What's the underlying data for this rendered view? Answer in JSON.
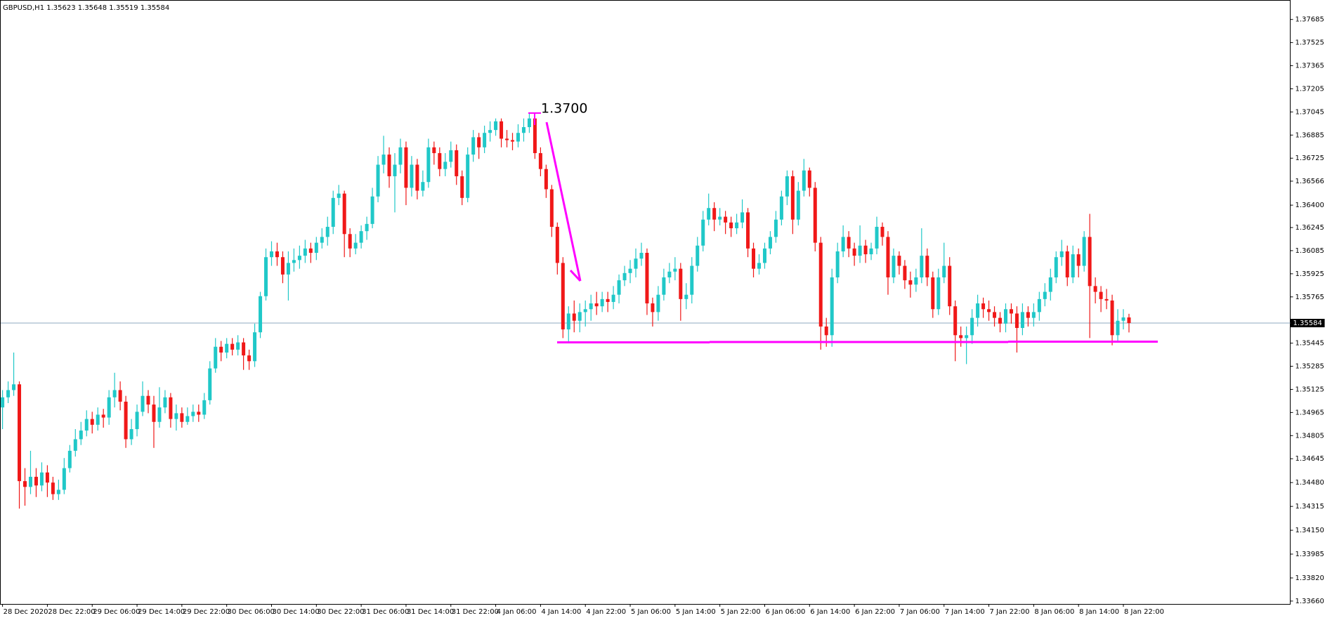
{
  "chart_data": {
    "type": "candlestick",
    "title": "GBPUSD,H1 1.35623 1.35648 1.35519 1.35584",
    "annotation": "1.3700",
    "last_price": 1.35584,
    "up_color": "#20c8c8",
    "down_color": "#f01818",
    "last_color": "#8fa9c2",
    "ylim": [
      1.3364,
      1.3781
    ],
    "yticks": [
      1.37685,
      1.37525,
      1.37365,
      1.37205,
      1.37045,
      1.36885,
      1.36725,
      1.36566,
      {
        "value": 1.364,
        "label": "1.36400"
      },
      1.36245,
      1.36085,
      1.35925,
      1.35765,
      1.35445,
      1.35285,
      1.35125,
      1.34965,
      1.34805,
      1.34645,
      {
        "value": 1.3448,
        "label": "1.34480"
      },
      1.34315,
      {
        "value": 1.3415,
        "label": "1.34150"
      },
      1.33985,
      {
        "value": 1.3382,
        "label": "1.33820"
      },
      {
        "value": 1.3366,
        "label": "1.33660"
      }
    ],
    "categories": [
      "28 Dec 2020",
      null,
      null,
      null,
      null,
      null,
      null,
      null,
      "28 Dec 22:00",
      null,
      null,
      null,
      null,
      null,
      null,
      null,
      "29 Dec 06:00",
      null,
      null,
      null,
      null,
      null,
      null,
      null,
      "29 Dec 14:00",
      null,
      null,
      null,
      null,
      null,
      null,
      null,
      "29 Dec 22:00",
      null,
      null,
      null,
      null,
      null,
      null,
      null,
      "30 Dec 06:00",
      null,
      null,
      null,
      null,
      null,
      null,
      null,
      "30 Dec 14:00",
      null,
      null,
      null,
      null,
      null,
      null,
      null,
      "30 Dec 22:00",
      null,
      null,
      null,
      null,
      null,
      null,
      null,
      "31 Dec 06:00",
      null,
      null,
      null,
      null,
      null,
      null,
      null,
      "31 Dec 14:00",
      null,
      null,
      null,
      null,
      null,
      null,
      null,
      "31 Dec 22:00",
      null,
      null,
      null,
      null,
      null,
      null,
      null,
      "4 Jan 06:00",
      null,
      null,
      null,
      null,
      null,
      null,
      null,
      "4 Jan 14:00",
      null,
      null,
      null,
      null,
      null,
      null,
      null,
      "4 Jan 22:00",
      null,
      null,
      null,
      null,
      null,
      null,
      null,
      "5 Jan 06:00",
      null,
      null,
      null,
      null,
      null,
      null,
      null,
      "5 Jan 14:00",
      null,
      null,
      null,
      null,
      null,
      null,
      null,
      "5 Jan 22:00",
      null,
      null,
      null,
      null,
      null,
      null,
      null,
      "6 Jan 06:00",
      null,
      null,
      null,
      null,
      null,
      null,
      null,
      "6 Jan 14:00",
      null,
      null,
      null,
      null,
      null,
      null,
      null,
      "6 Jan 22:00",
      null,
      null,
      null,
      null,
      null,
      null,
      null,
      "7 Jan 06:00",
      null,
      null,
      null,
      null,
      null,
      null,
      null,
      "7 Jan 14:00",
      null,
      null,
      null,
      null,
      null,
      null,
      null,
      "7 Jan 22:00",
      null,
      null,
      null,
      null,
      null,
      null,
      null,
      "8 Jan 06:00",
      null,
      null,
      null,
      null,
      null,
      null,
      null,
      "8 Jan 14:00",
      null,
      null,
      null,
      null,
      null,
      null,
      null,
      "8 Jan 22:00",
      null
    ],
    "open": [
      1.35,
      1.3507,
      1.3512,
      1.3516,
      1.3449,
      1.3445,
      1.3452,
      1.3446,
      1.3455,
      1.3448,
      1.344,
      1.3443,
      1.3458,
      1.347,
      1.3478,
      1.3484,
      1.3492,
      1.3488,
      1.3495,
      1.3493,
      1.3507,
      1.3512,
      1.3504,
      1.3478,
      1.3485,
      1.3497,
      1.3508,
      1.3502,
      1.349,
      1.35,
      1.3507,
      1.3492,
      1.3496,
      1.349,
      1.3494,
      1.3497,
      1.3495,
      1.3505,
      1.3527,
      1.3542,
      1.3538,
      1.3544,
      1.354,
      1.3545,
      1.3536,
      1.3532,
      1.3552,
      1.3577,
      1.3604,
      1.3608,
      1.3604,
      1.3592,
      1.36,
      1.3602,
      1.3605,
      1.361,
      1.3607,
      1.3614,
      1.3618,
      1.3625,
      1.3645,
      1.3648,
      1.362,
      1.361,
      1.3614,
      1.3622,
      1.3627,
      1.3646,
      1.3668,
      1.3675,
      1.366,
      1.3668,
      1.368,
      1.3652,
      1.3668,
      1.365,
      1.3656,
      1.368,
      1.3676,
      1.3665,
      1.367,
      1.3678,
      1.366,
      1.3645,
      1.3675,
      1.3687,
      1.368,
      1.369,
      1.3692,
      1.3698,
      1.3686,
      1.3685,
      1.3684,
      1.369,
      1.3694,
      1.37,
      1.3676,
      1.3665,
      1.3651,
      1.3625,
      1.36,
      1.3554,
      1.3565,
      1.356,
      1.3566,
      1.3568,
      1.3572,
      1.357,
      1.3575,
      1.3573,
      1.3578,
      1.3588,
      1.3593,
      1.3596,
      1.3603,
      1.3607,
      1.3572,
      1.3566,
      1.3578,
      1.359,
      1.3594,
      1.3596,
      1.3575,
      1.3578,
      1.3598,
      1.3612,
      1.363,
      1.3638,
      1.363,
      1.3632,
      1.3628,
      1.3624,
      1.3628,
      1.3635,
      1.361,
      1.3596,
      1.36,
      1.361,
      1.3618,
      1.363,
      1.3646,
      1.366,
      1.363,
      1.365,
      1.3664,
      1.3652,
      1.3614,
      1.3556,
      1.355,
      1.359,
      1.3608,
      1.3618,
      1.361,
      1.3605,
      1.3612,
      1.3606,
      1.361,
      1.3625,
      1.3618,
      1.359,
      1.3605,
      1.3598,
      1.3588,
      1.3585,
      1.359,
      1.3605,
      1.359,
      1.3568,
      1.359,
      1.3598,
      1.357,
      1.355,
      1.3548,
      1.355,
      1.3562,
      1.3572,
      1.3568,
      1.3566,
      1.3562,
      1.3558,
      1.3568,
      1.3565,
      1.3555,
      1.3566,
      1.3562,
      1.3566,
      1.3575,
      1.358,
      1.359,
      1.3604,
      1.3608,
      1.359,
      1.3606,
      1.3598,
      1.3618,
      1.3584,
      1.358,
      1.3575,
      1.3574,
      1.355,
      1.356,
      1.35623
    ],
    "high": [
      1.3512,
      1.3518,
      1.3538,
      1.3518,
      1.3458,
      1.347,
      1.3458,
      1.3462,
      1.346,
      1.3452,
      1.345,
      1.3465,
      1.3474,
      1.3485,
      1.349,
      1.3498,
      1.3497,
      1.35,
      1.3499,
      1.3512,
      1.3524,
      1.3518,
      1.3508,
      1.3492,
      1.3502,
      1.3518,
      1.3512,
      1.3508,
      1.3514,
      1.3512,
      1.351,
      1.3502,
      1.35,
      1.35,
      1.3502,
      1.3502,
      1.351,
      1.3532,
      1.3548,
      1.3546,
      1.3548,
      1.3548,
      1.355,
      1.3548,
      1.354,
      1.3558,
      1.358,
      1.361,
      1.3615,
      1.3614,
      1.3608,
      1.3608,
      1.361,
      1.3612,
      1.3616,
      1.3614,
      1.3618,
      1.3624,
      1.3632,
      1.365,
      1.3654,
      1.365,
      1.3624,
      1.362,
      1.3626,
      1.3632,
      1.3652,
      1.3674,
      1.3688,
      1.368,
      1.3676,
      1.3686,
      1.3684,
      1.3674,
      1.3672,
      1.3664,
      1.3686,
      1.3684,
      1.368,
      1.3676,
      1.3684,
      1.3682,
      1.3664,
      1.368,
      1.3692,
      1.369,
      1.3695,
      1.3698,
      1.37,
      1.37,
      1.3692,
      1.369,
      1.3696,
      1.37,
      1.3704,
      1.3704,
      1.368,
      1.3668,
      1.3654,
      1.3628,
      1.3604,
      1.357,
      1.3574,
      1.3572,
      1.3574,
      1.3578,
      1.358,
      1.358,
      1.358,
      1.3584,
      1.3592,
      1.3598,
      1.3602,
      1.361,
      1.3614,
      1.361,
      1.3576,
      1.3584,
      1.3596,
      1.36,
      1.3604,
      1.36,
      1.3586,
      1.3604,
      1.3618,
      1.3636,
      1.3648,
      1.3642,
      1.3638,
      1.3636,
      1.3632,
      1.3634,
      1.3644,
      1.3638,
      1.3614,
      1.3606,
      1.3614,
      1.3622,
      1.3636,
      1.365,
      1.3664,
      1.3664,
      1.3656,
      1.3672,
      1.3666,
      1.3656,
      1.3618,
      1.3562,
      1.3596,
      1.3614,
      1.3626,
      1.3622,
      1.3614,
      1.3626,
      1.3616,
      1.3614,
      1.3632,
      1.3628,
      1.3622,
      1.361,
      1.3608,
      1.3602,
      1.3594,
      1.3596,
      1.3624,
      1.361,
      1.3594,
      1.3596,
      1.3614,
      1.3604,
      1.3574,
      1.3556,
      1.3556,
      1.3568,
      1.3578,
      1.3576,
      1.3574,
      1.357,
      1.3566,
      1.3572,
      1.3572,
      1.357,
      1.3572,
      1.357,
      1.3572,
      1.358,
      1.3586,
      1.3596,
      1.3608,
      1.3616,
      1.3612,
      1.3612,
      1.361,
      1.3622,
      1.3634,
      1.359,
      1.3584,
      1.3582,
      1.3578,
      1.3568,
      1.3568,
      1.35648
    ],
    "low": [
      1.3485,
      1.3503,
      1.3508,
      1.343,
      1.3432,
      1.344,
      1.3438,
      1.3442,
      1.3438,
      1.3436,
      1.3436,
      1.344,
      1.3455,
      1.3466,
      1.3474,
      1.348,
      1.3482,
      1.3484,
      1.3486,
      1.3488,
      1.35,
      1.3498,
      1.3472,
      1.3474,
      1.348,
      1.3494,
      1.3496,
      1.3472,
      1.3486,
      1.3496,
      1.3486,
      1.3484,
      1.3486,
      1.3488,
      1.349,
      1.349,
      1.3492,
      1.3502,
      1.3524,
      1.3532,
      1.3534,
      1.3536,
      1.3536,
      1.3526,
      1.3526,
      1.3528,
      1.3548,
      1.3574,
      1.3598,
      1.3598,
      1.3586,
      1.3574,
      1.3594,
      1.3596,
      1.36,
      1.36,
      1.3602,
      1.361,
      1.3612,
      1.362,
      1.364,
      1.3604,
      1.3604,
      1.3606,
      1.361,
      1.3616,
      1.3624,
      1.3642,
      1.3662,
      1.3652,
      1.3635,
      1.3662,
      1.364,
      1.3646,
      1.3644,
      1.3646,
      1.3652,
      1.3668,
      1.366,
      1.366,
      1.3666,
      1.3654,
      1.364,
      1.3642,
      1.367,
      1.3672,
      1.3676,
      1.3684,
      1.3688,
      1.368,
      1.368,
      1.3678,
      1.368,
      1.3684,
      1.369,
      1.3672,
      1.366,
      1.3645,
      1.3618,
      1.3592,
      1.3548,
      1.3545,
      1.3552,
      1.3552,
      1.3556,
      1.356,
      1.3564,
      1.3566,
      1.3566,
      1.3568,
      1.3572,
      1.3584,
      1.3586,
      1.359,
      1.3598,
      1.3564,
      1.3556,
      1.356,
      1.3574,
      1.3586,
      1.3588,
      1.356,
      1.3568,
      1.3572,
      1.3594,
      1.3608,
      1.3626,
      1.3622,
      1.3626,
      1.362,
      1.3618,
      1.362,
      1.3624,
      1.3604,
      1.359,
      1.3592,
      1.3596,
      1.3606,
      1.3614,
      1.3626,
      1.364,
      1.362,
      1.3626,
      1.3646,
      1.3646,
      1.3608,
      1.354,
      1.3542,
      1.3542,
      1.3586,
      1.3604,
      1.3604,
      1.3598,
      1.36,
      1.36,
      1.3602,
      1.3606,
      1.3612,
      1.3578,
      1.3586,
      1.3592,
      1.3582,
      1.3576,
      1.358,
      1.3586,
      1.3584,
      1.3562,
      1.3564,
      1.3586,
      1.3564,
      1.3532,
      1.3542,
      1.353,
      1.3544,
      1.3556,
      1.3562,
      1.356,
      1.3556,
      1.3552,
      1.3552,
      1.3558,
      1.3538,
      1.355,
      1.3556,
      1.3556,
      1.356,
      1.357,
      1.3574,
      1.3586,
      1.3598,
      1.3584,
      1.3586,
      1.359,
      1.3594,
      1.3548,
      1.3572,
      1.3566,
      1.3568,
      1.3543,
      1.3546,
      1.3554,
      1.35519
    ],
    "close": [
      1.3507,
      1.3512,
      1.3516,
      1.3449,
      1.3445,
      1.3452,
      1.3446,
      1.3455,
      1.3448,
      1.344,
      1.3443,
      1.3458,
      1.347,
      1.3478,
      1.3484,
      1.3492,
      1.3488,
      1.3495,
      1.3493,
      1.3507,
      1.3512,
      1.3504,
      1.3478,
      1.3485,
      1.3497,
      1.3508,
      1.3502,
      1.349,
      1.35,
      1.3507,
      1.3492,
      1.3496,
      1.349,
      1.3494,
      1.3497,
      1.3495,
      1.3505,
      1.3527,
      1.3542,
      1.3538,
      1.3544,
      1.354,
      1.3545,
      1.3536,
      1.3532,
      1.3552,
      1.3577,
      1.3604,
      1.3608,
      1.3604,
      1.3592,
      1.36,
      1.3602,
      1.3605,
      1.361,
      1.3607,
      1.3614,
      1.3618,
      1.3625,
      1.3645,
      1.3648,
      1.362,
      1.361,
      1.3614,
      1.3622,
      1.3627,
      1.3646,
      1.3668,
      1.3675,
      1.366,
      1.3668,
      1.368,
      1.3652,
      1.3668,
      1.365,
      1.3656,
      1.368,
      1.3676,
      1.3665,
      1.367,
      1.3678,
      1.366,
      1.3645,
      1.3675,
      1.3687,
      1.368,
      1.369,
      1.3692,
      1.3698,
      1.3686,
      1.3685,
      1.3684,
      1.369,
      1.3694,
      1.37,
      1.3676,
      1.3665,
      1.3651,
      1.3625,
      1.36,
      1.3554,
      1.3565,
      1.356,
      1.3566,
      1.3568,
      1.3572,
      1.357,
      1.3575,
      1.3573,
      1.3578,
      1.3588,
      1.3593,
      1.3596,
      1.3603,
      1.3607,
      1.3572,
      1.3566,
      1.3578,
      1.359,
      1.3594,
      1.3596,
      1.3575,
      1.3578,
      1.3598,
      1.3612,
      1.363,
      1.3638,
      1.363,
      1.3632,
      1.3628,
      1.3624,
      1.3628,
      1.3635,
      1.361,
      1.3596,
      1.36,
      1.361,
      1.3618,
      1.363,
      1.3646,
      1.366,
      1.363,
      1.365,
      1.3664,
      1.3652,
      1.3614,
      1.3556,
      1.355,
      1.359,
      1.3608,
      1.3618,
      1.361,
      1.3605,
      1.3612,
      1.3606,
      1.361,
      1.3625,
      1.3618,
      1.359,
      1.3605,
      1.3598,
      1.3588,
      1.3585,
      1.359,
      1.3605,
      1.359,
      1.3568,
      1.359,
      1.3598,
      1.357,
      1.355,
      1.3548,
      1.355,
      1.3562,
      1.3572,
      1.3568,
      1.3566,
      1.3562,
      1.3558,
      1.3568,
      1.3565,
      1.3555,
      1.3566,
      1.3562,
      1.3566,
      1.3575,
      1.358,
      1.359,
      1.3604,
      1.3608,
      1.359,
      1.3606,
      1.3598,
      1.3618,
      1.3584,
      1.358,
      1.3575,
      1.3574,
      1.355,
      1.356,
      1.35623,
      1.35584
    ]
  }
}
